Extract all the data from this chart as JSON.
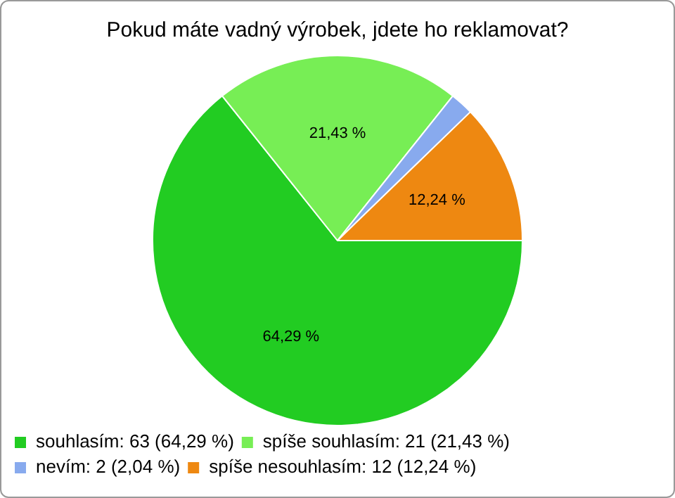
{
  "chart_data": {
    "type": "pie",
    "title": "Pokud máte vadný výrobek, jdete ho reklamovat?",
    "categories": [
      "souhlasím: 63 (64,29 %)",
      "spíše souhlasím: 21 (21,43 %)",
      "nevím: 2 (2,04 %)",
      "spíše nesouhlasím: 12 (12,24 %)"
    ],
    "values": [
      64.29,
      21.43,
      2.04,
      12.24
    ],
    "value_labels": [
      "64,29 %",
      "21,43 %",
      null,
      "12,24 %"
    ],
    "colors": [
      "#22cc22",
      "#77ee55",
      "#88aaee",
      "#ee8811"
    ],
    "legend": "bottom left"
  }
}
